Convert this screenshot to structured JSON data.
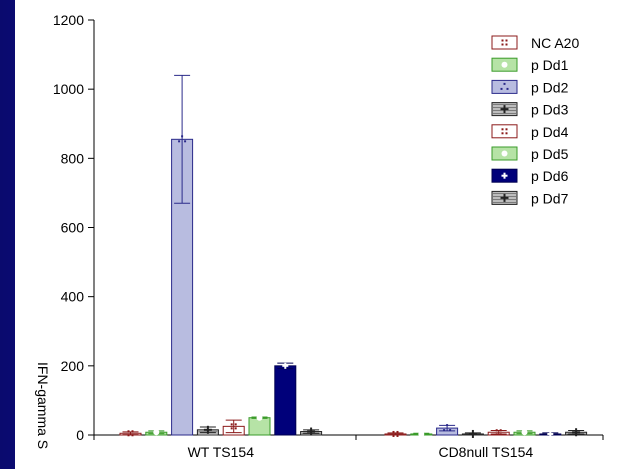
{
  "chart_data": {
    "type": "bar",
    "ylabel": "IFN-gamma S",
    "ylim": [
      0,
      1200
    ],
    "yticks": [
      0,
      200,
      400,
      600,
      800,
      1000,
      1200
    ],
    "groups": [
      "WT TS154",
      "CD8null TS154"
    ],
    "series": [
      {
        "name": "NC A20",
        "fill": "#ffffff",
        "stroke": "#8b1a1a",
        "marker": "dots",
        "values": [
          5,
          3
        ],
        "errors": [
          4,
          3
        ]
      },
      {
        "name": "p Dd1",
        "fill": "#b6e3a6",
        "stroke": "#3a9b2a",
        "marker": "circle",
        "values": [
          8,
          3
        ],
        "errors": [
          4,
          2
        ]
      },
      {
        "name": "p Dd2",
        "fill": "#b8bce0",
        "stroke": "#2a2a8a",
        "marker": "triangle",
        "values": [
          855,
          20
        ],
        "errors": [
          185,
          8
        ]
      },
      {
        "name": "p Dd3",
        "fill": "#bdbdbd",
        "stroke": "#222222",
        "marker": "cross",
        "values": [
          15,
          3
        ],
        "errors": [
          8,
          3
        ]
      },
      {
        "name": "p Dd4",
        "fill": "#ffffff",
        "stroke": "#8b1a1a",
        "marker": "dots",
        "values": [
          25,
          8
        ],
        "errors": [
          18,
          5
        ]
      },
      {
        "name": "p Dd5",
        "fill": "#b6e3a6",
        "stroke": "#3a9b2a",
        "marker": "circle",
        "values": [
          50,
          8
        ],
        "errors": [
          2,
          4
        ]
      },
      {
        "name": "p Dd6",
        "fill": "#00007a",
        "stroke": "#000050",
        "marker": "plus",
        "values": [
          200,
          3
        ],
        "errors": [
          8,
          3
        ]
      },
      {
        "name": "p Dd7",
        "fill": "#bdbdbd",
        "stroke": "#222222",
        "marker": "cross",
        "values": [
          10,
          8
        ],
        "errors": [
          5,
          5
        ]
      }
    ]
  }
}
